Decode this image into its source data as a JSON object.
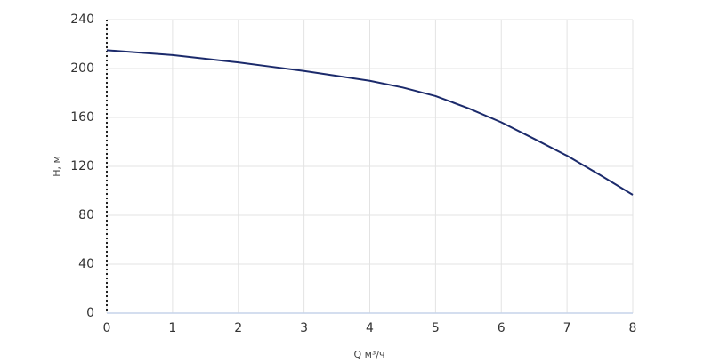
{
  "chart_data": {
    "type": "line",
    "x_label": "Q м³/ч",
    "y_label": "H, м",
    "x": [
      0,
      0.5,
      1,
      1.5,
      2,
      2.5,
      3,
      3.5,
      4,
      4.5,
      5,
      5.5,
      6,
      6.5,
      7,
      7.5,
      8
    ],
    "series": [
      {
        "name": "H",
        "color": "#1b2a6b",
        "values": [
          215,
          213,
          211,
          208,
          205,
          201.5,
          198,
          194,
          190,
          184.5,
          177.5,
          167.5,
          156,
          142.5,
          128.7,
          113,
          96.7
        ]
      }
    ],
    "xlim": [
      0,
      8
    ],
    "xticks": [
      0,
      1,
      2,
      3,
      4,
      5,
      6,
      7,
      8
    ],
    "ylim": [
      0,
      240
    ],
    "yticks": [
      0,
      40,
      80,
      120,
      160,
      200,
      240
    ],
    "grid": true
  }
}
